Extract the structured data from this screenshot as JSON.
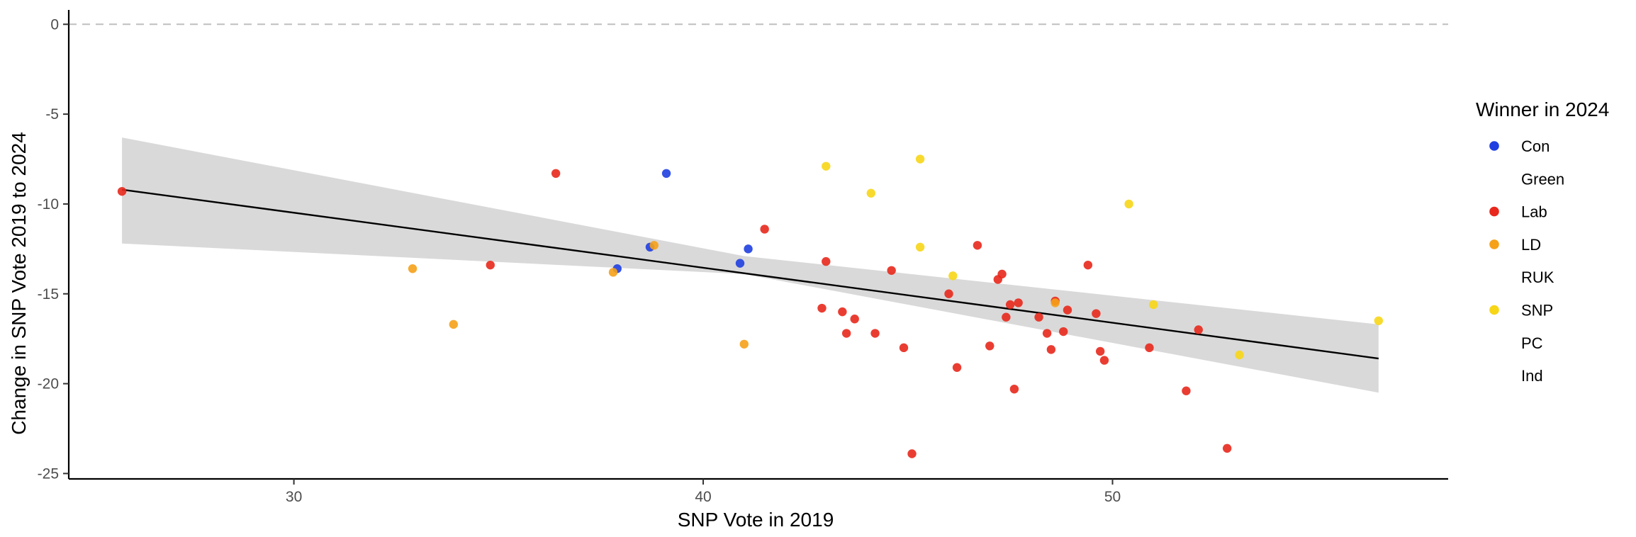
{
  "chart_data": {
    "type": "scatter",
    "title": "",
    "xlabel": "SNP Vote in 2019",
    "ylabel": "Change in SNP Vote 2019 to 2024",
    "xlim": [
      24.5,
      58.2
    ],
    "ylim": [
      -25.3,
      0.8
    ],
    "x_ticks": [
      30,
      40,
      50
    ],
    "y_ticks": [
      0,
      -5,
      -10,
      -15,
      -20,
      -25
    ],
    "reference_line": {
      "y": 0,
      "style": "dashed",
      "color": "#bfbfbf"
    },
    "grid": false,
    "legend": {
      "title": "Winner in 2024",
      "position": "right",
      "entries": [
        {
          "label": "Con",
          "color": "#1f3fe0",
          "shown": true
        },
        {
          "label": "Green",
          "color": "#2ca02c",
          "shown": false
        },
        {
          "label": "Lab",
          "color": "#e8281c",
          "shown": true
        },
        {
          "label": "LD",
          "color": "#f5a11a",
          "shown": true
        },
        {
          "label": "RUK",
          "color": "#12b6cf",
          "shown": false
        },
        {
          "label": "SNP",
          "color": "#f7d617",
          "shown": true
        },
        {
          "label": "PC",
          "color": "#3f8428",
          "shown": false
        },
        {
          "label": "Ind",
          "color": "#999999",
          "shown": false
        }
      ]
    },
    "trend_line": {
      "x": [
        25.8,
        56.5
      ],
      "y": [
        -9.2,
        -18.6
      ],
      "color": "#000000"
    },
    "confidence_band": {
      "x": [
        25.8,
        41.0,
        56.5
      ],
      "upper": [
        -6.3,
        -12.9,
        -16.7
      ],
      "lower": [
        -12.2,
        -13.9,
        -20.5
      ],
      "color": "#d9d9d9"
    },
    "series": [
      {
        "name": "Con",
        "color": "#1f3fe0",
        "points": [
          [
            39.1,
            -8.3
          ],
          [
            38.7,
            -12.4
          ],
          [
            37.9,
            -13.6
          ],
          [
            41.1,
            -12.5
          ],
          [
            40.9,
            -13.3
          ]
        ]
      },
      {
        "name": "Lab",
        "color": "#e8281c",
        "points": [
          [
            25.8,
            -9.3
          ],
          [
            34.8,
            -13.4
          ],
          [
            36.4,
            -8.3
          ],
          [
            41.5,
            -11.4
          ],
          [
            43.0,
            -13.2
          ],
          [
            42.9,
            -15.8
          ],
          [
            43.4,
            -16.0
          ],
          [
            43.7,
            -16.4
          ],
          [
            43.5,
            -17.2
          ],
          [
            44.2,
            -17.2
          ],
          [
            44.6,
            -13.7
          ],
          [
            44.9,
            -18.0
          ],
          [
            45.1,
            -23.9
          ],
          [
            46.0,
            -15.0
          ],
          [
            46.2,
            -19.1
          ],
          [
            46.7,
            -12.3
          ],
          [
            47.0,
            -17.9
          ],
          [
            47.2,
            -14.2
          ],
          [
            47.3,
            -13.9
          ],
          [
            47.4,
            -16.3
          ],
          [
            47.5,
            -15.6
          ],
          [
            47.6,
            -20.3
          ],
          [
            47.7,
            -15.5
          ],
          [
            48.2,
            -16.3
          ],
          [
            48.4,
            -17.2
          ],
          [
            48.5,
            -18.1
          ],
          [
            48.6,
            -15.4
          ],
          [
            48.8,
            -17.1
          ],
          [
            48.9,
            -15.9
          ],
          [
            49.4,
            -13.4
          ],
          [
            49.6,
            -16.1
          ],
          [
            49.7,
            -18.2
          ],
          [
            49.8,
            -18.7
          ],
          [
            50.9,
            -18.0
          ],
          [
            51.8,
            -20.4
          ],
          [
            52.1,
            -17.0
          ],
          [
            52.8,
            -23.6
          ]
        ]
      },
      {
        "name": "LD",
        "color": "#f5a11a",
        "points": [
          [
            32.9,
            -13.6
          ],
          [
            33.9,
            -16.7
          ],
          [
            37.8,
            -13.8
          ],
          [
            38.8,
            -12.3
          ],
          [
            41.0,
            -17.8
          ],
          [
            48.6,
            -15.5
          ]
        ]
      },
      {
        "name": "SNP",
        "color": "#f7d617",
        "points": [
          [
            43.0,
            -7.9
          ],
          [
            44.1,
            -9.4
          ],
          [
            45.3,
            -7.5
          ],
          [
            45.3,
            -12.4
          ],
          [
            46.1,
            -14.0
          ],
          [
            50.4,
            -10.0
          ],
          [
            51.0,
            -15.6
          ],
          [
            53.1,
            -18.4
          ],
          [
            56.5,
            -16.5
          ]
        ]
      }
    ]
  }
}
